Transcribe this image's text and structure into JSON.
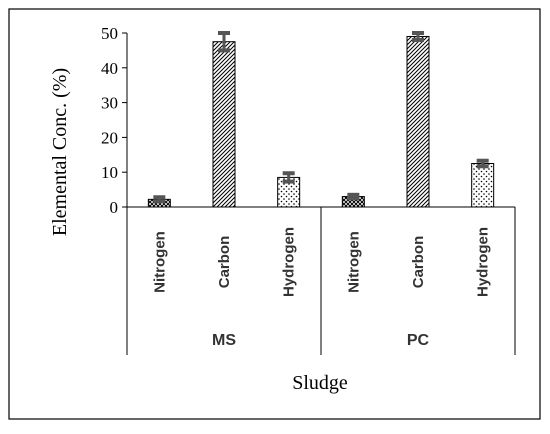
{
  "chart_data": {
    "type": "bar",
    "ylabel": "Elemental Conc. (%)",
    "xlabel": "Sludge",
    "ylim": [
      0,
      50
    ],
    "yticks": [
      0,
      10,
      20,
      30,
      40,
      50
    ],
    "groups": [
      {
        "name": "MS",
        "categories": [
          "Nitrogen",
          "Carbon",
          "Hydrogen"
        ],
        "values": [
          2.2,
          47.5,
          8.5
        ],
        "errors": [
          0.6,
          2.5,
          1.2
        ]
      },
      {
        "name": "PC",
        "categories": [
          "Nitrogen",
          "Carbon",
          "Hydrogen"
        ],
        "values": [
          3.0,
          49.0,
          12.5
        ],
        "errors": [
          0.5,
          1.0,
          0.8
        ]
      }
    ],
    "patterns": [
      "crosshatch",
      "diagonal",
      "dots"
    ],
    "colors": {
      "bar_outline": "#000000",
      "error_bar": "#555555",
      "frame": "#000000"
    }
  }
}
